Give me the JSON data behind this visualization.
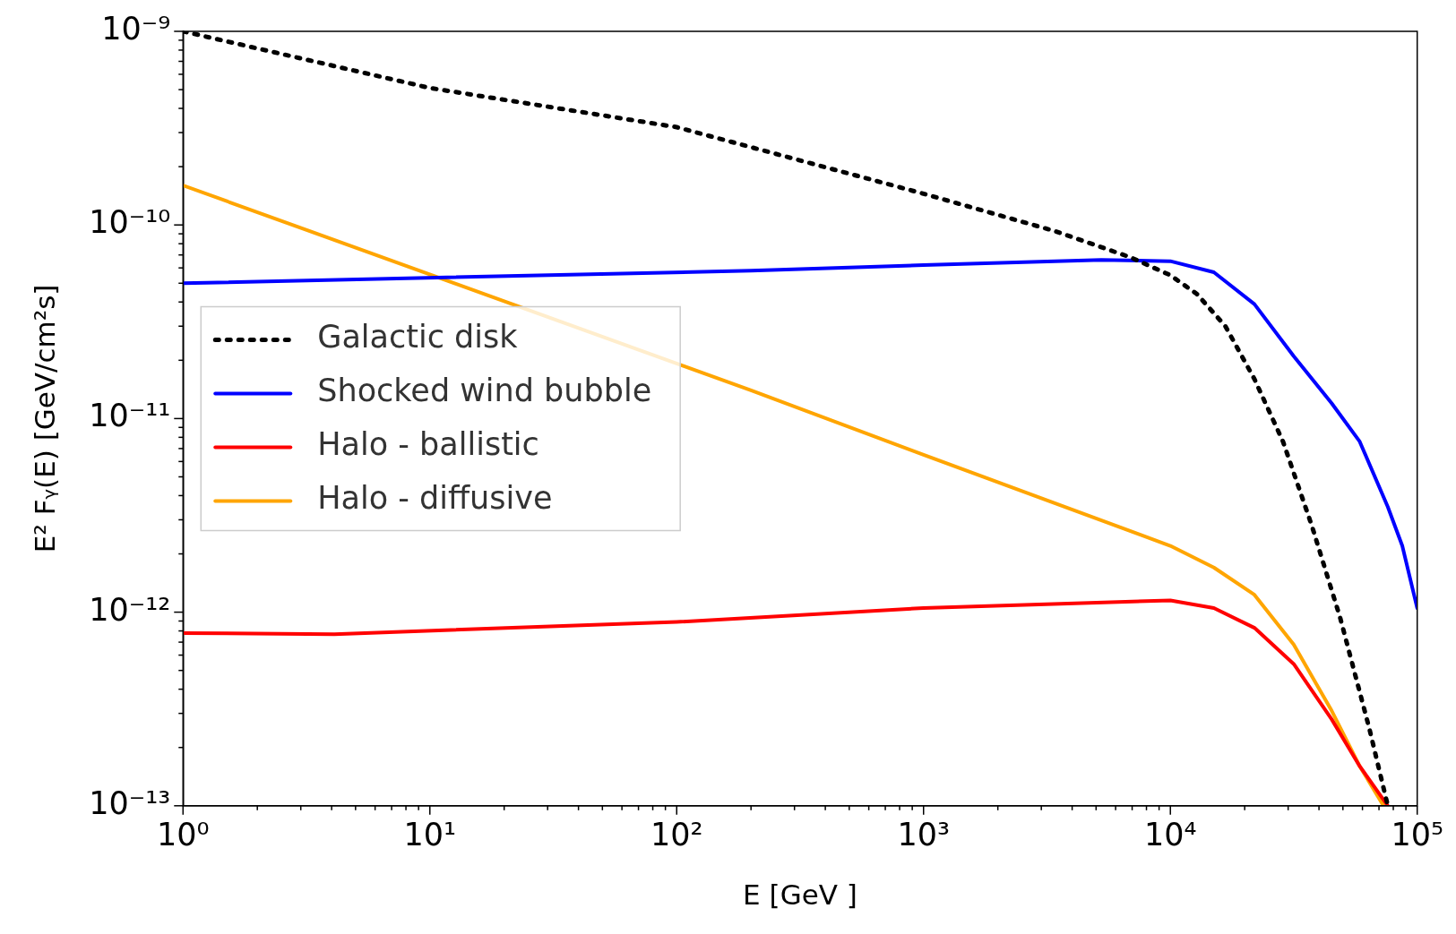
{
  "chart_data": {
    "type": "line",
    "xlabel": "E [GeV ]",
    "ylabel": "E² Fᵧ(E) [GeV/cm²s]",
    "log": "xy",
    "grid": false,
    "legend": "center left",
    "marker": "none",
    "xlim": [
      1,
      100000
    ],
    "ylim": [
      1e-13,
      1e-09
    ],
    "xticks": [
      {
        "value": 1,
        "label": "10⁰"
      },
      {
        "value": 2,
        "label": null
      },
      {
        "value": 3,
        "label": null
      },
      {
        "value": 4,
        "label": null
      },
      {
        "value": 5,
        "label": null
      },
      {
        "value": 6,
        "label": null
      },
      {
        "value": 7,
        "label": null
      },
      {
        "value": 8,
        "label": null
      },
      {
        "value": 9,
        "label": null
      },
      {
        "value": 10,
        "label": "10¹"
      },
      {
        "value": 20,
        "label": null
      },
      {
        "value": 30,
        "label": null
      },
      {
        "value": 40,
        "label": null
      },
      {
        "value": 50,
        "label": null
      },
      {
        "value": 60,
        "label": null
      },
      {
        "value": 70,
        "label": null
      },
      {
        "value": 80,
        "label": null
      },
      {
        "value": 90,
        "label": null
      },
      {
        "value": 100,
        "label": "10²"
      },
      {
        "value": 200,
        "label": null
      },
      {
        "value": 300,
        "label": null
      },
      {
        "value": 400,
        "label": null
      },
      {
        "value": 500,
        "label": null
      },
      {
        "value": 600,
        "label": null
      },
      {
        "value": 700,
        "label": null
      },
      {
        "value": 800,
        "label": null
      },
      {
        "value": 900,
        "label": null
      },
      {
        "value": 1000,
        "label": "10³"
      },
      {
        "value": 2000,
        "label": null
      },
      {
        "value": 3000,
        "label": null
      },
      {
        "value": 4000,
        "label": null
      },
      {
        "value": 5000,
        "label": null
      },
      {
        "value": 6000,
        "label": null
      },
      {
        "value": 7000,
        "label": null
      },
      {
        "value": 8000,
        "label": null
      },
      {
        "value": 9000,
        "label": null
      },
      {
        "value": 10000,
        "label": "10⁴"
      },
      {
        "value": 20000,
        "label": null
      },
      {
        "value": 30000,
        "label": null
      },
      {
        "value": 40000,
        "label": null
      },
      {
        "value": 50000,
        "label": null
      },
      {
        "value": 60000,
        "label": null
      },
      {
        "value": 70000,
        "label": null
      },
      {
        "value": 80000,
        "label": null
      },
      {
        "value": 90000,
        "label": null
      },
      {
        "value": 100000,
        "label": "10⁵"
      }
    ],
    "yticks": [
      {
        "value": 1e-13,
        "label": "10⁻¹³"
      },
      {
        "value": 2e-13,
        "label": null
      },
      {
        "value": 3e-13,
        "label": null
      },
      {
        "value": 4e-13,
        "label": null
      },
      {
        "value": 5e-13,
        "label": null
      },
      {
        "value": 6e-13,
        "label": null
      },
      {
        "value": 7e-13,
        "label": null
      },
      {
        "value": 8e-13,
        "label": null
      },
      {
        "value": 9e-13,
        "label": null
      },
      {
        "value": 1e-12,
        "label": "10⁻¹²"
      },
      {
        "value": 2e-12,
        "label": null
      },
      {
        "value": 3e-12,
        "label": null
      },
      {
        "value": 4e-12,
        "label": null
      },
      {
        "value": 5e-12,
        "label": null
      },
      {
        "value": 6e-12,
        "label": null
      },
      {
        "value": 7e-12,
        "label": null
      },
      {
        "value": 8e-12,
        "label": null
      },
      {
        "value": 9e-12,
        "label": null
      },
      {
        "value": 1e-11,
        "label": "10⁻¹¹"
      },
      {
        "value": 2e-11,
        "label": null
      },
      {
        "value": 3e-11,
        "label": null
      },
      {
        "value": 4e-11,
        "label": null
      },
      {
        "value": 5e-11,
        "label": null
      },
      {
        "value": 6e-11,
        "label": null
      },
      {
        "value": 7e-11,
        "label": null
      },
      {
        "value": 8e-11,
        "label": null
      },
      {
        "value": 9e-11,
        "label": null
      },
      {
        "value": 1e-10,
        "label": "10⁻¹⁰"
      },
      {
        "value": 2e-10,
        "label": null
      },
      {
        "value": 3e-10,
        "label": null
      },
      {
        "value": 4e-10,
        "label": null
      },
      {
        "value": 5e-10,
        "label": null
      },
      {
        "value": 6e-10,
        "label": null
      },
      {
        "value": 7e-10,
        "label": null
      },
      {
        "value": 8e-10,
        "label": null
      },
      {
        "value": 9e-10,
        "label": null
      },
      {
        "value": 1e-09,
        "label": "10⁻⁹"
      }
    ],
    "series": [
      {
        "name": "Galactic disk",
        "color": "#000000",
        "line_style": "dotted",
        "x": [
          1,
          10,
          100,
          1000,
          3400,
          6900,
          10000,
          12800,
          16700,
          21900,
          28600,
          37400,
          48800,
          64000,
          76000
        ],
        "values": [
          1e-09,
          5.1e-10,
          3.2e-10,
          1.45e-10,
          9.3e-11,
          6.8e-11,
          5.5e-11,
          4.4e-11,
          3e-11,
          1.6e-11,
          7.6e-12,
          2.8e-12,
          9.3e-13,
          2.5e-13,
          1e-13
        ]
      },
      {
        "name": "Shocked wind bubble",
        "color": "#0000ff",
        "line_style": "solid",
        "x": [
          1,
          200,
          1000,
          5250,
          10000,
          15000,
          21900,
          31600,
          45000,
          58500,
          76000,
          87000,
          100000
        ],
        "values": [
          5e-11,
          5.8e-11,
          6.2e-11,
          6.6e-11,
          6.5e-11,
          5.7e-11,
          3.9e-11,
          2.1e-11,
          1.2e-11,
          7.6e-12,
          3.5e-12,
          2.2e-12,
          1.05e-12
        ]
      },
      {
        "name": "Halo - ballistic",
        "color": "#ff0000",
        "line_style": "solid",
        "x": [
          1,
          4.1,
          100,
          1000,
          10000,
          15000,
          21900,
          31600,
          45000,
          58500,
          76000
        ],
        "values": [
          7.8e-13,
          7.7e-13,
          8.9e-13,
          1.05e-12,
          1.15e-12,
          1.05e-12,
          8.3e-13,
          5.4e-13,
          2.8e-13,
          1.6e-13,
          1e-13
        ]
      },
      {
        "name": "Halo - diffusive",
        "color": "#ffa500",
        "line_style": "solid",
        "x": [
          1,
          200,
          1000,
          10000,
          15000,
          21900,
          31600,
          45000,
          58500,
          73000
        ],
        "values": [
          1.6e-10,
          1.4e-11,
          6.5e-12,
          2.2e-12,
          1.7e-12,
          1.23e-12,
          6.8e-13,
          3.1e-13,
          1.6e-13,
          1e-13
        ]
      }
    ]
  }
}
